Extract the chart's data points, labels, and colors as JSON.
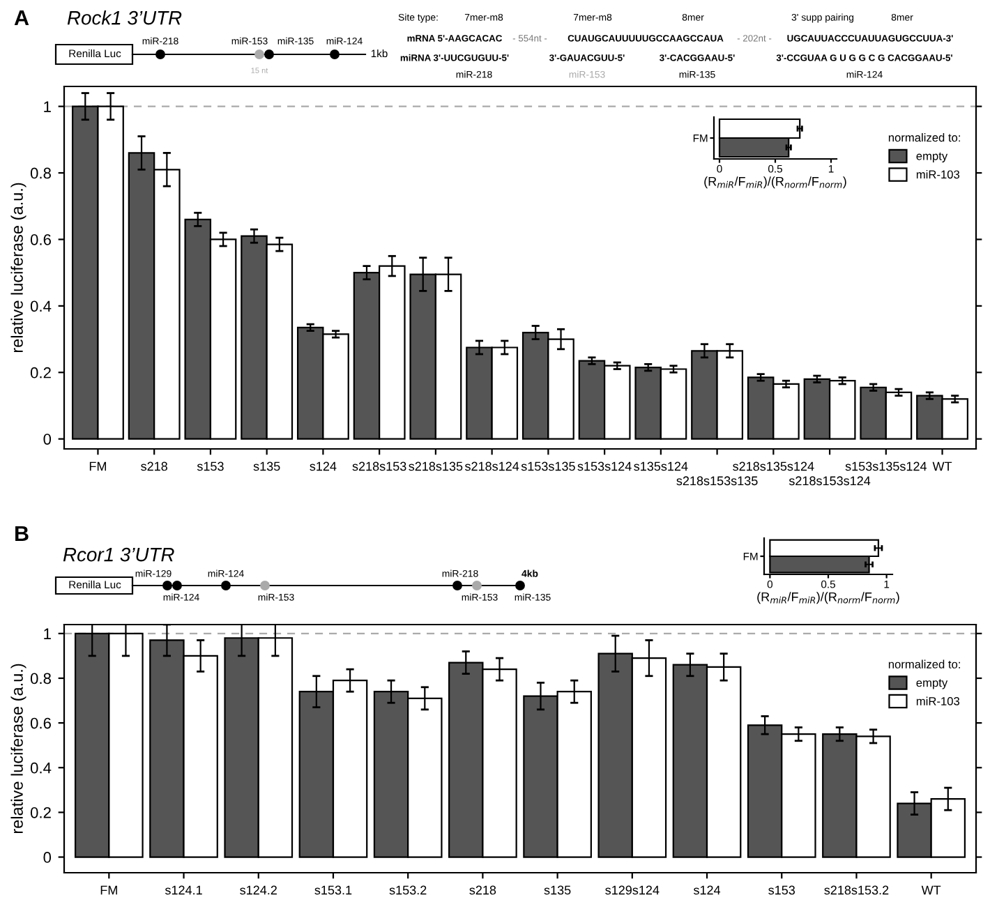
{
  "chart_data": [
    {
      "type": "bar",
      "title": "Rock1 3’UTR",
      "ylabel": "relative luciferase (a.u.)",
      "categories": [
        "FM",
        "s218",
        "s153",
        "s135",
        "s124",
        "s218s153",
        "s218s135",
        "s218s124",
        "s153s135",
        "s153s124",
        "s135s124",
        "s218s153s135",
        "s218s135s124",
        "s218s153s124",
        "s153s135s124",
        "WT"
      ],
      "series": [
        {
          "name": "empty",
          "color": "#555555",
          "values": [
            1.0,
            0.86,
            0.66,
            0.61,
            0.335,
            0.5,
            0.495,
            0.275,
            0.32,
            0.235,
            0.215,
            0.265,
            0.185,
            0.18,
            0.155,
            0.13
          ],
          "errors": [
            0.04,
            0.05,
            0.02,
            0.02,
            0.01,
            0.02,
            0.05,
            0.02,
            0.02,
            0.01,
            0.01,
            0.02,
            0.01,
            0.01,
            0.01,
            0.01
          ]
        },
        {
          "name": "miR-103",
          "color": "#ffffff",
          "values": [
            1.0,
            0.81,
            0.6,
            0.585,
            0.315,
            0.52,
            0.495,
            0.275,
            0.3,
            0.22,
            0.21,
            0.265,
            0.165,
            0.175,
            0.14,
            0.12
          ],
          "errors": [
            0.04,
            0.05,
            0.02,
            0.02,
            0.01,
            0.03,
            0.05,
            0.02,
            0.03,
            0.01,
            0.01,
            0.02,
            0.01,
            0.01,
            0.01,
            0.01
          ]
        }
      ],
      "ylim": [
        -0.03,
        1.06
      ],
      "yticks": [
        0,
        0.2,
        0.4,
        0.6,
        0.8,
        1
      ],
      "grid": false,
      "legend": "top right",
      "legend_title": "normalized to:",
      "ref_lines": [
        {
          "axis": "y",
          "value": 1,
          "color": "#aaaaaa",
          "line_style": "dashed"
        }
      ],
      "annotations": [
        "A",
        "Renilla Luc",
        "miR-218",
        "miR-153",
        "15 nt",
        "miR-135",
        "miR-124",
        "1kb",
        "Site type:",
        "7mer-m8",
        "7mer-m8",
        "8mer",
        "3' supp pairing",
        "8mer",
        "mRNA 5'-AAGCACAC",
        "- 554nt -",
        "CUAUGCAUUUUUGCCAAGCCAUA",
        "- 202nt -",
        "UGCAUUACCCUAUUAGUGCCUUA-3'",
        "miRNA 3'-UUCGUGUU-5'",
        "3'-GAUACGUU-5'",
        "3'-CACGGAAU-5'",
        "3'-CCGUAA G U G G C G CACGGAAU-5'",
        "miR-218",
        "miR-153",
        "miR-135",
        "miR-124"
      ]
    },
    {
      "type": "bar",
      "orientation": "horizontal",
      "categories": [
        "FM"
      ],
      "xlabel": "(R$_{miR}$/F$_{miR}$)/(R$_{norm}$/F$_{norm}$)",
      "series": [
        {
          "color": "#ffffff",
          "values": [
            0.72
          ],
          "errors": [
            0.02
          ]
        },
        {
          "color": "#555555",
          "values": [
            0.62
          ],
          "errors": [
            0.02
          ]
        }
      ],
      "xlim": [
        -0.05,
        1.05
      ],
      "xticks": [
        0,
        0.5,
        1
      ],
      "grid": false
    },
    {
      "type": "bar",
      "title": "Rcor1 3’UTR",
      "ylabel": "relative luciferase (a.u.)",
      "categories": [
        "FM",
        "s124.1",
        "s124.2",
        "s153.1",
        "s153.2",
        "s218",
        "s135",
        "s129s124",
        "s124",
        "s153",
        "s218s153.2",
        "WT"
      ],
      "series": [
        {
          "name": "empty",
          "color": "#555555",
          "values": [
            1.0,
            0.97,
            0.98,
            0.74,
            0.74,
            0.87,
            0.72,
            0.91,
            0.86,
            0.59,
            0.55,
            0.24
          ],
          "errors": [
            0.1,
            0.07,
            0.08,
            0.07,
            0.05,
            0.05,
            0.06,
            0.08,
            0.05,
            0.04,
            0.03,
            0.05
          ]
        },
        {
          "name": "miR-103",
          "color": "#ffffff",
          "values": [
            1.0,
            0.9,
            0.98,
            0.79,
            0.71,
            0.84,
            0.74,
            0.89,
            0.85,
            0.55,
            0.54,
            0.26
          ],
          "errors": [
            0.1,
            0.07,
            0.08,
            0.05,
            0.05,
            0.05,
            0.05,
            0.08,
            0.06,
            0.03,
            0.03,
            0.05
          ]
        }
      ],
      "ylim": [
        -0.07,
        1.04
      ],
      "yticks": [
        0,
        0.2,
        0.4,
        0.6,
        0.8,
        1
      ],
      "grid": false,
      "legend": "top right",
      "legend_title": "normalized to:",
      "ref_lines": [
        {
          "axis": "y",
          "value": 1,
          "color": "#aaaaaa",
          "line_style": "dashed"
        }
      ],
      "annotations": [
        "B",
        "Renilla Luc",
        "miR-129",
        "miR-124",
        "miR-124",
        "miR-153",
        "miR-218",
        "miR-153",
        "4kb",
        "miR-135"
      ]
    },
    {
      "type": "bar",
      "orientation": "horizontal",
      "categories": [
        "FM"
      ],
      "xlabel": "(R$_{miR}$/F$_{miR}$)/(R$_{norm}$/F$_{norm}$)",
      "series": [
        {
          "color": "#ffffff",
          "values": [
            0.93
          ],
          "errors": [
            0.03
          ]
        },
        {
          "color": "#555555",
          "values": [
            0.85
          ],
          "errors": [
            0.03
          ]
        }
      ],
      "xlim": [
        -0.05,
        1.05
      ],
      "xticks": [
        0,
        0.5,
        1
      ],
      "grid": false
    }
  ]
}
